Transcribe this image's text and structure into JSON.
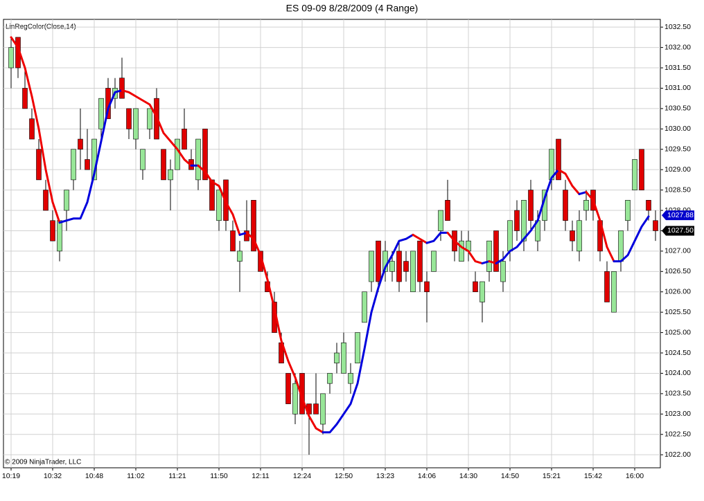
{
  "chart_data": {
    "type": "candlestick",
    "title": "ES 09-09  8/28/2009 (4 Range)",
    "copyright": "© 2009 NinjaTrader, LLC",
    "categories": [
      "10:19",
      null,
      null,
      null,
      null,
      null,
      "10:32",
      null,
      null,
      null,
      null,
      null,
      "10:48",
      null,
      null,
      null,
      null,
      null,
      "11:02",
      null,
      null,
      null,
      null,
      null,
      "11:21",
      null,
      null,
      null,
      null,
      null,
      "11:50",
      null,
      null,
      null,
      null,
      null,
      "12:11",
      null,
      null,
      null,
      null,
      null,
      "12:24",
      null,
      null,
      null,
      null,
      null,
      "12:50",
      null,
      null,
      null,
      null,
      null,
      "13:23",
      null,
      null,
      null,
      null,
      null,
      "14:06",
      null,
      null,
      null,
      null,
      null,
      "14:30",
      null,
      null,
      null,
      null,
      null,
      "14:50",
      null,
      null,
      null,
      null,
      null,
      "15:21",
      null,
      null,
      null,
      null,
      null,
      "15:42",
      null,
      null,
      null,
      null,
      null,
      "16:00",
      null,
      null,
      null
    ],
    "open": [
      1031.5,
      1032.25,
      1031,
      1030.25,
      1029.5,
      1028.5,
      1027.75,
      1027,
      1028,
      1028.75,
      1029.75,
      1029.25,
      1028.75,
      1030,
      1031,
      1030.75,
      1031.25,
      1030.5,
      1029.75,
      1029,
      1030,
      1030.75,
      1029.5,
      1028.75,
      1029,
      1030,
      1029.25,
      1028.75,
      1030,
      1028.75,
      1027.75,
      1028.75,
      1027.5,
      1026.75,
      1027.5,
      1028.25,
      1027,
      1026.25,
      1025.75,
      1024.75,
      1024,
      1023,
      1024,
      1023.25,
      1023.25,
      1022.75,
      1023.75,
      1024.25,
      1024,
      1023.75,
      1024.25,
      1025.25,
      1026.25,
      1027.25,
      1026.5,
      1026.5,
      1027,
      1026.75,
      1026,
      1027.25,
      1026.25,
      1026.5,
      1027.5,
      1028.25,
      1027.5,
      1026.75,
      1027,
      1026.25,
      1025.75,
      1026.5,
      1027.5,
      1026.25,
      1027,
      1028,
      1027.25,
      1028.5,
      1027.25,
      1027.75,
      1028.75,
      1029.75,
      1028.5,
      1027.5,
      1027,
      1028,
      1028.5,
      1027.75,
      1026.5,
      1025.5,
      1026.75,
      1027.75,
      1028.5,
      1029.5,
      1028.25,
      1027.75
    ],
    "high": [
      1032.25,
      1032.25,
      1031.5,
      1030.5,
      1029.75,
      1028.75,
      1028,
      1027.75,
      1028.5,
      1029.5,
      1030.5,
      1030,
      1029.75,
      1030.75,
      1031.25,
      1031.25,
      1031.75,
      1030.5,
      1030.5,
      1029.5,
      1030.5,
      1031,
      1029.5,
      1029.25,
      1029.75,
      1030.5,
      1029.5,
      1029.75,
      1030,
      1028.75,
      1028.5,
      1028.75,
      1027.75,
      1027.25,
      1028.25,
      1028.25,
      1027,
      1026.5,
      1026,
      1025,
      1024,
      1024,
      1024,
      1023.25,
      1024,
      1023.5,
      1024,
      1024.75,
      1025,
      1024.25,
      1025,
      1026,
      1027,
      1027.25,
      1027.25,
      1027,
      1027.25,
      1027,
      1027,
      1027.25,
      1026.5,
      1027,
      1028,
      1028.75,
      1027.5,
      1027.5,
      1027.5,
      1026.5,
      1026.25,
      1027.25,
      1027.5,
      1027,
      1027.75,
      1028.25,
      1028.25,
      1028.75,
      1028,
      1028.5,
      1029.5,
      1029.75,
      1028.75,
      1027.75,
      1028,
      1028.5,
      1028.5,
      1027.75,
      1026.75,
      1026.5,
      1027.5,
      1028.25,
      1029.25,
      1029.5,
      1028.25,
      1028
    ],
    "low": [
      1031,
      1031.25,
      1030.5,
      1029.75,
      1028.75,
      1028,
      1027.25,
      1026.75,
      1027.5,
      1028.5,
      1029,
      1029,
      1028.75,
      1029.75,
      1030.25,
      1030.5,
      1030.75,
      1029.75,
      1029.5,
      1028.75,
      1029.75,
      1029.75,
      1028.75,
      1028,
      1029,
      1029.5,
      1029,
      1028.5,
      1028.75,
      1028,
      1027.5,
      1027.5,
      1027,
      1026,
      1027.25,
      1027,
      1026.5,
      1026,
      1025,
      1024.25,
      1023.25,
      1022.75,
      1023,
      1022,
      1023,
      1022.5,
      1023.5,
      1024,
      1024,
      1023.5,
      1024.25,
      1025.25,
      1026,
      1026,
      1026.25,
      1026.25,
      1026,
      1026.25,
      1026,
      1026,
      1025.25,
      1026.5,
      1027.25,
      1027.75,
      1026.75,
      1026.75,
      1026.75,
      1026,
      1025.25,
      1026.25,
      1026.5,
      1026,
      1026.75,
      1027.25,
      1027,
      1027.5,
      1027,
      1027.5,
      1028.5,
      1028.75,
      1027.5,
      1027,
      1026.75,
      1027.75,
      1027.75,
      1026.75,
      1025.75,
      1025.5,
      1026.5,
      1027.5,
      1028.5,
      1028.5,
      1027.75,
      1027.25
    ],
    "close": [
      1032,
      1031.5,
      1030.5,
      1029.75,
      1028.75,
      1028,
      1027.25,
      1027.75,
      1028.5,
      1029.5,
      1029.5,
      1029,
      1029.75,
      1030.75,
      1030.25,
      1031,
      1030.75,
      1030,
      1030.5,
      1029.5,
      1030.5,
      1029.75,
      1028.75,
      1029,
      1029.75,
      1029.5,
      1029,
      1029.75,
      1028.75,
      1028,
      1028.5,
      1027.75,
      1027,
      1027,
      1027.25,
      1027,
      1026.5,
      1026,
      1025,
      1024.25,
      1023.25,
      1023.75,
      1023,
      1023,
      1023,
      1023.5,
      1024,
      1024.5,
      1024.75,
      1024,
      1025,
      1026,
      1027,
      1026.25,
      1027,
      1026.75,
      1026.25,
      1026.5,
      1027,
      1026.25,
      1026,
      1027,
      1028,
      1027.75,
      1027,
      1027.25,
      1027.25,
      1026,
      1026.25,
      1027.25,
      1026.5,
      1026.75,
      1027.75,
      1027.5,
      1028.25,
      1027.75,
      1027.75,
      1028.5,
      1029.5,
      1028.75,
      1027.75,
      1027.25,
      1027.75,
      1028.25,
      1028,
      1027,
      1025.75,
      1026.5,
      1027.5,
      1028.25,
      1029.25,
      1028.5,
      1028,
      1027.5
    ],
    "up_color": "#98e698",
    "down_color": "#e00000",
    "lines": [
      {
        "name": "LinRegColor(Close,14)",
        "up_color": "#0000dd",
        "down_color": "#ee0000",
        "values": [
          1032.25,
          1032,
          1031.5,
          1030.8,
          1030,
          1029,
          1028.2,
          1027.7,
          1027.75,
          1027.8,
          1027.8,
          1028.2,
          1028.9,
          1029.7,
          1030.5,
          1030.9,
          1030.95,
          1030.9,
          1030.8,
          1030.7,
          1030.6,
          1030.3,
          1029.9,
          1029.7,
          1029.5,
          1029.25,
          1029.1,
          1029.1,
          1028.95,
          1028.7,
          1028.6,
          1028.2,
          1027.9,
          1027.4,
          1027.45,
          1027.3,
          1026.9,
          1026.3,
          1025.6,
          1024.8,
          1024.3,
          1023.9,
          1023.4,
          1022.95,
          1022.65,
          1022.55,
          1022.55,
          1022.75,
          1023,
          1023.25,
          1023.75,
          1024.6,
          1025.5,
          1026.1,
          1026.6,
          1026.9,
          1027.25,
          1027.3,
          1027.4,
          1027.3,
          1027.2,
          1027.25,
          1027.45,
          1027.45,
          1027.25,
          1027.1,
          1027,
          1026.75,
          1026.7,
          1026.75,
          1026.7,
          1026.8,
          1027,
          1027.1,
          1027.3,
          1027.5,
          1027.75,
          1028.3,
          1028.8,
          1029,
          1028.9,
          1028.6,
          1028.4,
          1028.45,
          1028.25,
          1027.75,
          1027.1,
          1026.75,
          1026.75,
          1026.9,
          1027.25,
          1027.6,
          1027.85,
          null
        ]
      }
    ],
    "markers": [
      {
        "value": 1027.88,
        "label": "1027.88",
        "color": "#0000cc"
      },
      {
        "value": 1027.5,
        "label": "1027.50",
        "color": "#000000"
      }
    ],
    "ylim": [
      1021.68,
      1032.69
    ],
    "yticks": [
      {
        "value": 1022,
        "label": "1022.00"
      },
      {
        "value": 1022.5,
        "label": "1022.50"
      },
      {
        "value": 1023,
        "label": "1023.00"
      },
      {
        "value": 1023.5,
        "label": "1023.50"
      },
      {
        "value": 1024,
        "label": "1024.00"
      },
      {
        "value": 1024.5,
        "label": "1024.50"
      },
      {
        "value": 1025,
        "label": "1025.00"
      },
      {
        "value": 1025.5,
        "label": "1025.50"
      },
      {
        "value": 1026,
        "label": "1026.00"
      },
      {
        "value": 1026.5,
        "label": "1026.50"
      },
      {
        "value": 1027,
        "label": "1027.00"
      },
      {
        "value": 1027.5,
        "label": "1027.50"
      },
      {
        "value": 1028,
        "label": "1028.00"
      },
      {
        "value": 1028.5,
        "label": "1028.50"
      },
      {
        "value": 1029,
        "label": "1029.00"
      },
      {
        "value": 1029.5,
        "label": "1029.50"
      },
      {
        "value": 1030,
        "label": "1030.00"
      },
      {
        "value": 1030.5,
        "label": "1030.50"
      },
      {
        "value": 1031,
        "label": "1031.00"
      },
      {
        "value": 1031.5,
        "label": "1031.50"
      },
      {
        "value": 1032,
        "label": "1032.00"
      },
      {
        "value": 1032.5,
        "label": "1032.50"
      }
    ],
    "grid": true
  }
}
